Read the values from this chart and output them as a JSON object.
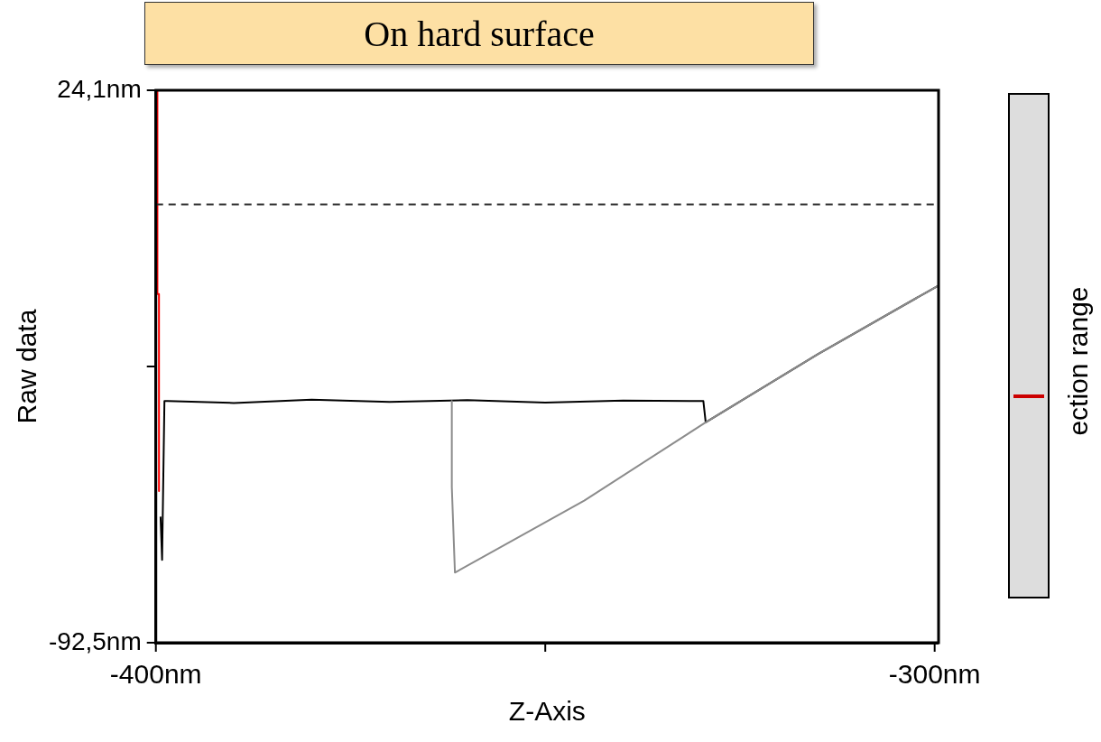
{
  "chart_data": {
    "type": "line",
    "title": "On hard surface",
    "xlabel": "Z-Axis",
    "ylabel": "Raw data",
    "xlim": [
      -400,
      -299.5
    ],
    "xticks": [
      {
        "value": -400,
        "label": "-400nm"
      },
      {
        "value": -350,
        "label": null
      },
      {
        "value": -300,
        "label": "-300nm"
      }
    ],
    "ylim": [
      -92.5,
      24.1
    ],
    "yticks": [
      {
        "value": -92.5,
        "label": "-92,5nm"
      },
      {
        "value": -34.2,
        "label": null
      },
      {
        "value": 24.1,
        "label": "24,1nm"
      }
    ],
    "grid": false,
    "legend": false,
    "marker": "none",
    "line_style": "solid",
    "ref_lines": [
      {
        "axis": "y",
        "value": 0,
        "color": "#333333",
        "line_style": "dashed"
      }
    ],
    "annotations": [
      "ection range"
    ],
    "series": [
      {
        "color": "#8c8c8c",
        "x": [
          -362,
          -362,
          -361.6,
          -345,
          -329.4,
          -315,
          -299.5
        ],
        "values": [
          -41.5,
          -59.6,
          -77.7,
          -62.5,
          -46.0,
          -31.6,
          -17.1
        ]
      },
      {
        "color": "#000000",
        "x": [
          -399.4,
          -399.2,
          -398.9,
          -398.5,
          -390,
          -380,
          -370,
          -360,
          -350,
          -340,
          -329.7,
          -329.4,
          -315,
          -299.5
        ],
        "values": [
          -65.9,
          -75.0,
          -41.5,
          -41.5,
          -41.9,
          -41.2,
          -41.7,
          -41.3,
          -41.8,
          -41.4,
          -41.5,
          -46.0,
          -31.6,
          -17.1
        ]
      },
      {
        "color": "#ff0000",
        "x": [
          -399.8,
          -399.8,
          -399.6,
          -399.6
        ],
        "values": [
          24.1,
          -18.9,
          -18.9,
          -60.5
        ]
      }
    ]
  }
}
